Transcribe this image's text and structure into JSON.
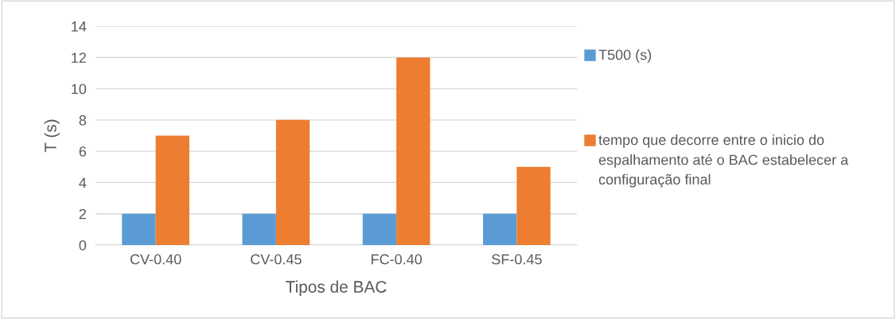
{
  "chart_data": {
    "type": "bar",
    "xlabel": "Tipos de BAC",
    "ylabel": "T (s)",
    "categories": [
      "CV-0.40",
      "CV-0.45",
      "FC-0.40",
      "SF-0.45"
    ],
    "series": [
      {
        "name": "T500 (s)",
        "color": "#5b9bd5",
        "values": [
          2,
          2,
          2,
          2
        ]
      },
      {
        "name": "tempo que decorre entre o inicio do espalhamento até o BAC estabelecer a configuração final",
        "color": "#ed7d31",
        "values": [
          7,
          8,
          12,
          5
        ]
      }
    ],
    "ylim": [
      0,
      14
    ],
    "yticks": [
      0,
      2,
      4,
      6,
      8,
      10,
      12,
      14
    ],
    "grid": "y",
    "legend": "right"
  }
}
